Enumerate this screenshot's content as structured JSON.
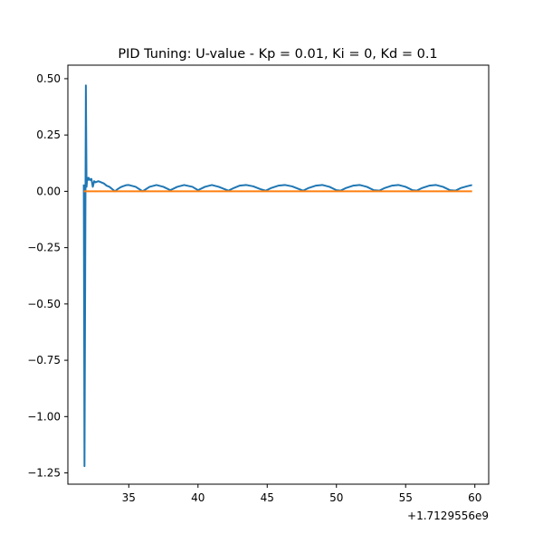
{
  "chart_data": {
    "type": "line",
    "title": "PID Tuning: U-value - Kp = 0.01, Ki = 0, Kd = 0.1",
    "xlabel": "",
    "ylabel": "",
    "x_offset_label": "+1.7129556e9",
    "xlim": [
      30.6,
      61.0
    ],
    "ylim": [
      -1.3,
      0.56
    ],
    "x_ticks": [
      35,
      40,
      45,
      50,
      55,
      60
    ],
    "x_tick_labels": [
      "35",
      "40",
      "45",
      "50",
      "55",
      "60"
    ],
    "y_ticks": [
      0.5,
      0.25,
      0.0,
      -0.25,
      -0.5,
      -0.75,
      -1.0,
      -1.25
    ],
    "y_tick_labels": [
      "0.50",
      "0.25",
      "0.00",
      "−0.25",
      "−0.50",
      "−0.75",
      "−1.00",
      "−1.25"
    ],
    "grid": false,
    "legend": "none",
    "series": [
      {
        "color": "#1f77b4",
        "x": [
          31.75,
          31.8,
          31.85,
          31.9,
          31.95,
          32.0,
          32.05,
          32.1,
          32.2,
          32.3,
          32.4,
          32.5,
          32.6,
          32.8,
          33.0,
          33.2,
          33.4,
          33.6,
          33.8,
          34.0,
          34.2,
          34.4,
          34.6,
          34.8,
          35.0,
          35.5,
          36.0,
          36.5,
          37.0,
          37.5,
          38.0,
          38.5,
          39.0,
          39.6,
          40.0,
          40.5,
          41.0,
          41.5,
          42.2,
          42.6,
          43.0,
          43.5,
          44.0,
          44.5,
          44.9,
          45.3,
          45.8,
          46.3,
          46.8,
          47.3,
          47.6,
          48.0,
          48.5,
          49.0,
          49.5,
          50.0,
          50.3,
          50.7,
          51.2,
          51.7,
          52.2,
          52.7,
          53.1,
          53.5,
          54.0,
          54.5,
          55.0,
          55.5,
          55.8,
          56.2,
          56.7,
          57.2,
          57.7,
          58.2,
          58.6,
          59.0,
          59.4,
          59.8
        ],
        "y": [
          0.03,
          -1.22,
          -0.4,
          0.47,
          0.02,
          0.06,
          0.05,
          0.06,
          0.05,
          0.055,
          0.02,
          0.045,
          0.04,
          0.045,
          0.04,
          0.035,
          0.025,
          0.02,
          0.01,
          0.0,
          0.01,
          0.018,
          0.023,
          0.027,
          0.028,
          0.02,
          0.0,
          0.02,
          0.028,
          0.02,
          0.005,
          0.02,
          0.028,
          0.02,
          0.005,
          0.02,
          0.028,
          0.02,
          0.003,
          0.015,
          0.025,
          0.028,
          0.022,
          0.01,
          0.003,
          0.015,
          0.025,
          0.028,
          0.022,
          0.01,
          0.003,
          0.015,
          0.025,
          0.028,
          0.02,
          0.005,
          0.003,
          0.015,
          0.025,
          0.028,
          0.02,
          0.005,
          0.003,
          0.015,
          0.025,
          0.028,
          0.02,
          0.005,
          0.003,
          0.015,
          0.025,
          0.028,
          0.02,
          0.005,
          0.003,
          0.015,
          0.022,
          0.028
        ]
      },
      {
        "color": "#ff7f0e",
        "x": [
          31.75,
          59.8
        ],
        "y": [
          0.0,
          0.0
        ]
      }
    ]
  }
}
